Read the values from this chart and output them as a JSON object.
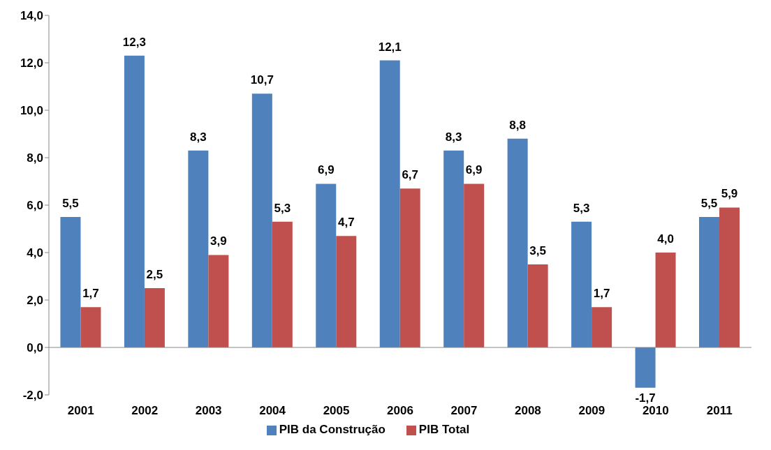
{
  "chart_data": {
    "type": "bar",
    "categories": [
      "2001",
      "2002",
      "2003",
      "2004",
      "2005",
      "2006",
      "2007",
      "2008",
      "2009",
      "2010",
      "2011"
    ],
    "series": [
      {
        "name": "PIB da Construção",
        "color": "#4f81bd",
        "values": [
          5.5,
          12.3,
          8.3,
          10.7,
          6.9,
          12.1,
          8.3,
          8.8,
          5.3,
          -1.7,
          5.5
        ],
        "value_labels": [
          "5,5",
          "12,3",
          "8,3",
          "10,7",
          "6,9",
          "12,1",
          "8,3",
          "8,8",
          "5,3",
          "-1,7",
          "5,5"
        ]
      },
      {
        "name": "PIB Total",
        "color": "#c0504d",
        "values": [
          1.7,
          2.5,
          3.9,
          5.3,
          4.7,
          6.7,
          6.9,
          3.5,
          1.7,
          4.0,
          5.9
        ],
        "value_labels": [
          "1,7",
          "2,5",
          "3,9",
          "5,3",
          "4,7",
          "6,7",
          "6,9",
          "3,5",
          "1,7",
          "4,0",
          "5,9"
        ]
      }
    ],
    "ylim": [
      -2,
      14
    ],
    "yticks": [
      {
        "value": -2,
        "label": "-2,0"
      },
      {
        "value": 0,
        "label": "0,0"
      },
      {
        "value": 2,
        "label": "2,0"
      },
      {
        "value": 4,
        "label": "4,0"
      },
      {
        "value": 6,
        "label": "6,0"
      },
      {
        "value": 8,
        "label": "8,0"
      },
      {
        "value": 10,
        "label": "10,0"
      },
      {
        "value": 12,
        "label": "12,0"
      },
      {
        "value": 14,
        "label": "14,0"
      }
    ],
    "ref_lines": [
      {
        "axis": "y",
        "value": 0,
        "color": "#888888"
      }
    ],
    "grid": false,
    "legend": "bottom"
  }
}
